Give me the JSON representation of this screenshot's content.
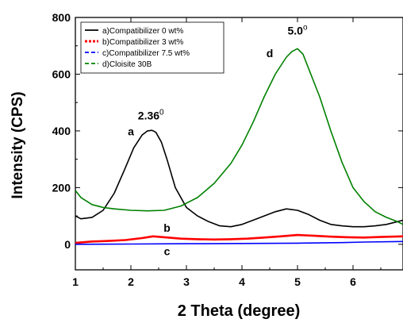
{
  "chart_data": {
    "type": "line",
    "xlabel": "2 Theta (degree)",
    "ylabel": "Intensity (CPS)",
    "xlim": [
      1,
      6.9
    ],
    "ylim": [
      -90,
      800
    ],
    "xticks": [
      1,
      2,
      3,
      4,
      5,
      6
    ],
    "yticks": [
      0,
      200,
      400,
      600,
      800
    ],
    "grid": false,
    "legend_position": "top-left",
    "series": [
      {
        "name": "a)Compatibilizer 0 wt%",
        "color": "#000000",
        "dash": "solid",
        "x": [
          1.0,
          1.1,
          1.3,
          1.5,
          1.7,
          1.9,
          2.05,
          2.2,
          2.3,
          2.38,
          2.45,
          2.55,
          2.65,
          2.8,
          3.0,
          3.2,
          3.4,
          3.6,
          3.8,
          4.0,
          4.2,
          4.4,
          4.6,
          4.8,
          5.0,
          5.2,
          5.4,
          5.6,
          5.8,
          6.0,
          6.2,
          6.4,
          6.6,
          6.8,
          6.9
        ],
        "y": [
          100,
          90,
          95,
          120,
          180,
          270,
          340,
          385,
          400,
          402,
          395,
          360,
          300,
          200,
          130,
          100,
          80,
          65,
          62,
          70,
          85,
          100,
          115,
          125,
          120,
          105,
          85,
          70,
          65,
          62,
          62,
          65,
          70,
          80,
          85
        ]
      },
      {
        "name": "b)Compatibilizer 3 wt%",
        "color": "#ff0000",
        "dash": "dotted",
        "x": [
          1.0,
          1.3,
          1.6,
          1.9,
          2.2,
          2.4,
          2.6,
          2.9,
          3.2,
          3.5,
          3.8,
          4.1,
          4.4,
          4.7,
          5.0,
          5.3,
          5.6,
          5.9,
          6.2,
          6.5,
          6.9
        ],
        "y": [
          5,
          10,
          12,
          15,
          22,
          28,
          25,
          20,
          18,
          17,
          18,
          20,
          24,
          28,
          33,
          30,
          27,
          25,
          24,
          26,
          28
        ]
      },
      {
        "name": "c)Compatibilizer 7.5 wt%",
        "color": "#0000ff",
        "dash": "dashed",
        "x": [
          1.0,
          2.0,
          3.0,
          4.0,
          5.0,
          5.8,
          6.2,
          6.9
        ],
        "y": [
          0,
          1,
          2,
          3,
          4,
          6,
          8,
          10
        ]
      },
      {
        "name": "d)Cloisite 30B",
        "color": "#008000",
        "dash": "dashdot",
        "x": [
          1.0,
          1.1,
          1.3,
          1.5,
          1.7,
          2.0,
          2.3,
          2.6,
          2.9,
          3.2,
          3.5,
          3.8,
          4.0,
          4.2,
          4.4,
          4.6,
          4.8,
          4.9,
          5.0,
          5.1,
          5.2,
          5.4,
          5.6,
          5.8,
          6.0,
          6.2,
          6.4,
          6.6,
          6.8,
          6.9
        ],
        "y": [
          190,
          165,
          140,
          130,
          125,
          120,
          118,
          120,
          135,
          165,
          215,
          285,
          350,
          430,
          520,
          600,
          660,
          680,
          690,
          670,
          620,
          520,
          400,
          290,
          200,
          150,
          115,
          95,
          80,
          70
        ]
      }
    ],
    "annotations": [
      {
        "text": "2.36",
        "sup": "0",
        "x": 2.36,
        "y": 440
      },
      {
        "text": "a",
        "x": 2.0,
        "y": 385
      },
      {
        "text": "5.0",
        "sup": "o",
        "x": 5.0,
        "y": 740
      },
      {
        "text": "d",
        "x": 4.5,
        "y": 660
      },
      {
        "text": "b",
        "x": 2.65,
        "y": 45
      },
      {
        "text": "c",
        "x": 2.65,
        "y": -38
      }
    ]
  }
}
